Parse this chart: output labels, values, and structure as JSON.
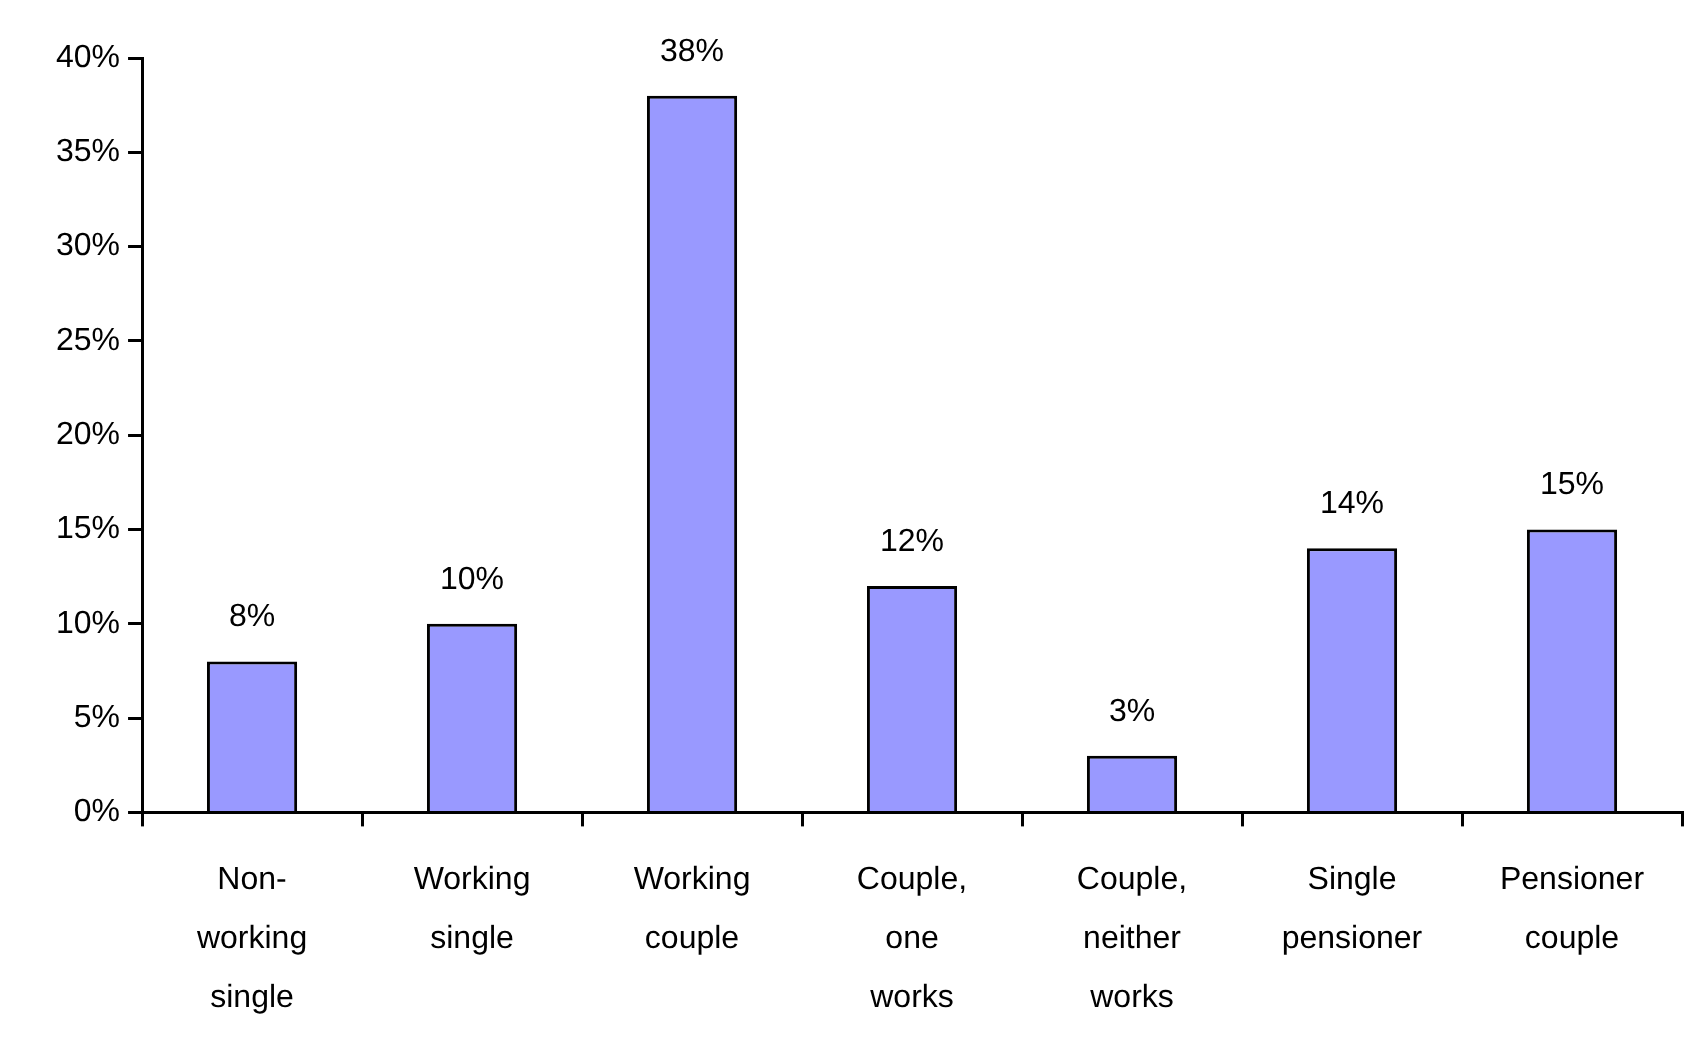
{
  "chart_data": {
    "type": "bar",
    "categories": [
      "Non-working single",
      "Working single",
      "Working couple",
      "Couple, one works",
      "Couple, neither works",
      "Single pensioner",
      "Pensioner couple"
    ],
    "values": [
      8,
      10,
      38,
      12,
      3,
      14,
      15
    ],
    "value_labels": [
      "8%",
      "10%",
      "38%",
      "12%",
      "3%",
      "14%",
      "15%"
    ],
    "color": "#9999ff",
    "ylim": [
      0,
      40
    ],
    "yticks": [
      {
        "value": 0,
        "label": "0%"
      },
      {
        "value": 5,
        "label": "5%"
      },
      {
        "value": 10,
        "label": "10%"
      },
      {
        "value": 15,
        "label": "15%"
      },
      {
        "value": 20,
        "label": "20%"
      },
      {
        "value": 25,
        "label": "25%"
      },
      {
        "value": 30,
        "label": "30%"
      },
      {
        "value": 35,
        "label": "35%"
      },
      {
        "value": 40,
        "label": "40%"
      }
    ]
  }
}
